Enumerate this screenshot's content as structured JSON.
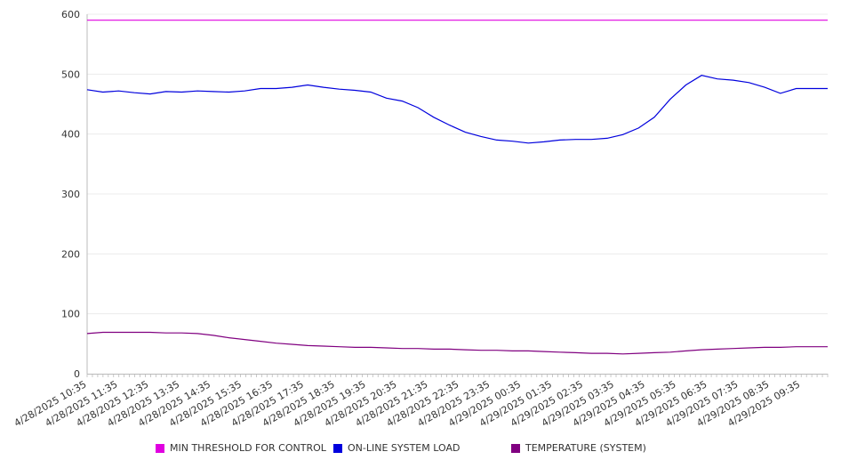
{
  "chart_data": {
    "type": "line",
    "title": "",
    "xlabel": "",
    "ylabel": "",
    "ylim": [
      0,
      600
    ],
    "yticks": [
      0,
      100,
      200,
      300,
      400,
      500,
      600
    ],
    "grid": true,
    "legend_position": "bottom",
    "x_tick_labels": [
      "4/28/2025 10:35",
      "4/28/2025 11:35",
      "4/28/2025 12:35",
      "4/28/2025 13:35",
      "4/28/2025 14:35",
      "4/28/2025 15:35",
      "4/28/2025 16:35",
      "4/28/2025 17:35",
      "4/28/2025 18:35",
      "4/28/2025 19:35",
      "4/28/2025 20:35",
      "4/28/2025 21:35",
      "4/28/2025 22:35",
      "4/28/2025 23:35",
      "4/29/2025 00:35",
      "4/29/2025 01:35",
      "4/29/2025 02:35",
      "4/29/2025 03:35",
      "4/29/2025 04:35",
      "4/29/2025 05:35",
      "4/29/2025 06:35",
      "4/29/2025 07:35",
      "4/29/2025 08:35",
      "4/29/2025 09:35"
    ],
    "x": [
      "4/28/2025 10:35",
      "4/28/2025 11:05",
      "4/28/2025 11:35",
      "4/28/2025 12:05",
      "4/28/2025 12:35",
      "4/28/2025 13:05",
      "4/28/2025 13:35",
      "4/28/2025 14:05",
      "4/28/2025 14:35",
      "4/28/2025 15:05",
      "4/28/2025 15:35",
      "4/28/2025 16:05",
      "4/28/2025 16:35",
      "4/28/2025 17:05",
      "4/28/2025 17:35",
      "4/28/2025 18:05",
      "4/28/2025 18:35",
      "4/28/2025 19:05",
      "4/28/2025 19:35",
      "4/28/2025 20:05",
      "4/28/2025 20:35",
      "4/28/2025 21:05",
      "4/28/2025 21:35",
      "4/28/2025 22:05",
      "4/28/2025 22:35",
      "4/28/2025 23:05",
      "4/28/2025 23:35",
      "4/29/2025 00:05",
      "4/29/2025 00:35",
      "4/29/2025 01:05",
      "4/29/2025 01:35",
      "4/29/2025 02:05",
      "4/29/2025 02:35",
      "4/29/2025 03:05",
      "4/29/2025 03:35",
      "4/29/2025 04:05",
      "4/29/2025 04:35",
      "4/29/2025 05:05",
      "4/29/2025 05:35",
      "4/29/2025 06:05",
      "4/29/2025 06:35",
      "4/29/2025 07:05",
      "4/29/2025 07:35",
      "4/29/2025 08:05",
      "4/29/2025 08:35",
      "4/29/2025 09:05",
      "4/29/2025 09:35",
      "4/29/2025 10:05"
    ],
    "series": [
      {
        "name": "MIN THRESHOLD FOR CONTROL",
        "color": "#e000e0",
        "values": [
          590,
          590,
          590,
          590,
          590,
          590,
          590,
          590,
          590,
          590,
          590,
          590,
          590,
          590,
          590,
          590,
          590,
          590,
          590,
          590,
          590,
          590,
          590,
          590,
          590,
          590,
          590,
          590,
          590,
          590,
          590,
          590,
          590,
          590,
          590,
          590,
          590,
          590,
          590,
          590,
          590,
          590,
          590,
          590,
          590,
          590,
          590,
          590
        ]
      },
      {
        "name": "ON-LINE SYSTEM LOAD",
        "color": "#0000dd",
        "values": [
          474,
          470,
          472,
          469,
          467,
          471,
          470,
          472,
          471,
          470,
          472,
          476,
          476,
          478,
          482,
          478,
          475,
          473,
          470,
          460,
          455,
          444,
          428,
          415,
          403,
          396,
          390,
          388,
          385,
          387,
          390,
          391,
          391,
          393,
          399,
          410,
          428,
          458,
          482,
          498,
          492,
          490,
          486,
          478,
          468,
          476,
          476,
          476
        ]
      },
      {
        "name": "TEMPERATURE (SYSTEM)",
        "color": "#800080",
        "values": [
          67,
          69,
          69,
          69,
          69,
          68,
          68,
          67,
          64,
          60,
          57,
          54,
          51,
          49,
          47,
          46,
          45,
          44,
          44,
          43,
          42,
          42,
          41,
          41,
          40,
          39,
          39,
          38,
          38,
          37,
          36,
          35,
          34,
          34,
          33,
          34,
          35,
          36,
          38,
          40,
          41,
          42,
          43,
          44,
          44,
          45,
          45,
          45
        ]
      }
    ]
  }
}
